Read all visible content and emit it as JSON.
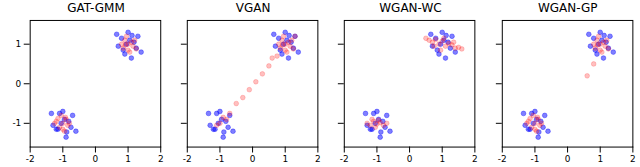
{
  "chart_data": [
    {
      "type": "scatter",
      "title": "GAT-GMM",
      "xlim": [
        -2,
        2
      ],
      "ylim": [
        -1.6,
        1.6
      ],
      "xticks": [
        -2,
        -1,
        0,
        1,
        2
      ],
      "yticks": [
        -1,
        0,
        1
      ],
      "series": [
        {
          "color": "#0000ff",
          "x": [
            1.05,
            0.8,
            1.25,
            0.9,
            1.3,
            0.7,
            1.1,
            1.0,
            0.85,
            1.18,
            0.95,
            1.4,
            0.65,
            1.12,
            -0.95,
            -1.2,
            -0.75,
            -1.1,
            -0.7,
            -1.3,
            -0.9,
            -1.0,
            -1.15,
            -0.82,
            -1.05,
            -0.6,
            -1.35,
            -0.88
          ],
          "values": [
            1.1,
            1.15,
            0.9,
            0.75,
            1.2,
            0.95,
            0.65,
            1.3,
            0.85,
            1.05,
            1.0,
            0.8,
            1.25,
            1.22,
            -0.9,
            -1.15,
            -1.1,
            -0.75,
            -0.8,
            -1.05,
            -1.35,
            -0.7,
            -1.15,
            -0.95,
            -1.0,
            -1.2,
            -0.75,
            -1.22
          ]
        },
        {
          "color": "#ff0000",
          "x": [
            1.0,
            0.9,
            1.15,
            0.85,
            1.2,
            1.05,
            0.95,
            1.1,
            0.8,
            1.25,
            1.0,
            0.92,
            -1.0,
            -0.9,
            -1.1,
            -1.2,
            -0.85,
            -1.05,
            -0.95,
            -1.15,
            -0.8,
            -1.0,
            -1.25,
            -0.92
          ],
          "values": [
            1.0,
            1.1,
            0.95,
            0.9,
            1.1,
            0.8,
            1.2,
            1.05,
            1.0,
            0.88,
            0.85,
            0.98,
            -1.0,
            -0.9,
            -1.1,
            -0.95,
            -1.05,
            -0.8,
            -1.2,
            -0.88,
            -1.0,
            -1.15,
            -1.0,
            -0.85
          ]
        }
      ]
    },
    {
      "type": "scatter",
      "title": "VGAN",
      "xlim": [
        -2,
        2
      ],
      "ylim": [
        -1.6,
        1.6
      ],
      "xticks": [
        -2,
        -1,
        0,
        1,
        2
      ],
      "yticks": [
        -1,
        0,
        1
      ],
      "tick_labels": "x",
      "series": [
        {
          "color": "#0000ff",
          "x": [
            1.05,
            0.8,
            1.25,
            0.9,
            1.3,
            0.7,
            1.1,
            1.0,
            0.85,
            1.18,
            0.95,
            1.4,
            0.65,
            1.12,
            -0.95,
            -1.2,
            -0.75,
            -1.1,
            -0.7,
            -1.3,
            -0.9,
            -1.0,
            -1.15,
            -0.82,
            -1.05,
            -0.6,
            -1.35,
            -0.88
          ],
          "values": [
            1.1,
            1.15,
            0.9,
            0.75,
            1.2,
            0.95,
            0.65,
            1.3,
            0.85,
            1.05,
            1.0,
            0.8,
            1.25,
            1.22,
            -0.9,
            -1.15,
            -1.1,
            -0.75,
            -0.8,
            -1.05,
            -1.35,
            -0.7,
            -1.15,
            -0.95,
            -1.0,
            -1.2,
            -0.75,
            -1.22
          ]
        },
        {
          "color": "#ff0000",
          "x": [
            1.0,
            0.9,
            1.15,
            0.85,
            1.2,
            1.05,
            0.95,
            1.1,
            0.8,
            1.25,
            1.0,
            0.92,
            1.3,
            0.75,
            0.5,
            0.3,
            0.1,
            -0.1,
            -0.3,
            -0.5,
            0.6,
            -0.7,
            -1.0,
            -0.9,
            -1.1,
            -0.8
          ],
          "values": [
            1.0,
            1.1,
            0.95,
            0.9,
            1.1,
            0.8,
            1.2,
            1.05,
            1.0,
            0.88,
            0.85,
            0.98,
            1.2,
            0.7,
            0.45,
            0.25,
            0.05,
            -0.15,
            -0.35,
            -0.5,
            0.65,
            -0.75,
            -1.0,
            -0.85,
            -1.05,
            -0.9
          ]
        }
      ]
    },
    {
      "type": "scatter",
      "title": "WGAN-WC",
      "xlim": [
        -2,
        2
      ],
      "ylim": [
        -1.6,
        1.6
      ],
      "xticks": [
        -2,
        -1,
        0,
        1,
        2
      ],
      "yticks": [
        -1,
        0,
        1
      ],
      "tick_labels": "x",
      "series": [
        {
          "color": "#0000ff",
          "x": [
            1.05,
            0.8,
            1.25,
            0.9,
            1.3,
            0.7,
            1.1,
            1.0,
            0.85,
            1.18,
            0.95,
            1.4,
            0.65,
            1.12,
            -0.95,
            -1.2,
            -0.75,
            -1.1,
            -0.7,
            -1.3,
            -0.9,
            -1.0,
            -1.15,
            -0.82,
            -1.05,
            -0.6,
            -1.35,
            -0.88
          ],
          "values": [
            1.1,
            1.15,
            0.9,
            0.75,
            1.2,
            0.95,
            0.65,
            1.3,
            0.85,
            1.05,
            1.0,
            0.8,
            1.25,
            1.22,
            -0.9,
            -1.15,
            -1.1,
            -0.75,
            -0.8,
            -1.05,
            -1.35,
            -0.7,
            -1.15,
            -0.95,
            -1.0,
            -1.2,
            -0.75,
            -1.22
          ]
        },
        {
          "color": "#ff0000",
          "x": [
            0.5,
            0.6,
            0.7,
            0.8,
            0.9,
            1.0,
            1.1,
            1.2,
            1.3,
            1.4,
            1.5,
            1.6,
            0.75,
            1.05,
            1.35,
            0.95,
            -1.3,
            -1.2,
            -1.1,
            -1.0,
            -0.9,
            -0.8,
            -0.7,
            -1.05,
            -0.95,
            -1.15
          ],
          "values": [
            1.15,
            1.1,
            1.05,
            1.12,
            1.0,
            1.08,
            0.95,
            1.02,
            0.98,
            0.9,
            0.92,
            0.88,
            0.95,
            1.15,
            1.05,
            0.85,
            -1.0,
            -1.05,
            -0.95,
            -1.02,
            -0.98,
            -1.05,
            -1.0,
            -1.1,
            -0.92,
            -0.9
          ]
        }
      ]
    },
    {
      "type": "scatter",
      "title": "WGAN-GP",
      "xlim": [
        -2,
        2
      ],
      "ylim": [
        -1.6,
        1.6
      ],
      "xticks": [
        -2,
        -1,
        0,
        1,
        2
      ],
      "yticks": [
        -1,
        0,
        1
      ],
      "tick_labels": "x",
      "series": [
        {
          "color": "#0000ff",
          "x": [
            1.05,
            0.8,
            1.25,
            0.9,
            1.3,
            0.7,
            1.1,
            1.0,
            0.85,
            1.18,
            0.95,
            1.4,
            0.65,
            1.12,
            -0.95,
            -1.2,
            -0.75,
            -1.1,
            -0.7,
            -1.3,
            -0.9,
            -1.0,
            -1.15,
            -0.82,
            -1.05,
            -0.6,
            -1.35,
            -0.88
          ],
          "values": [
            1.1,
            1.15,
            0.9,
            0.75,
            1.2,
            0.95,
            0.65,
            1.3,
            0.85,
            1.05,
            1.0,
            0.8,
            1.25,
            1.22,
            -0.9,
            -1.15,
            -1.1,
            -0.75,
            -0.8,
            -1.05,
            -1.35,
            -0.7,
            -1.15,
            -0.95,
            -1.0,
            -1.2,
            -0.75,
            -1.22
          ]
        },
        {
          "color": "#ff0000",
          "x": [
            1.0,
            0.9,
            1.15,
            0.85,
            1.2,
            1.05,
            0.95,
            1.1,
            0.8,
            1.25,
            1.0,
            0.92,
            0.6,
            0.8,
            -1.0,
            -0.9,
            -1.1,
            -1.2,
            -0.85,
            -1.05,
            -0.95,
            -1.15,
            -0.8,
            -1.0,
            -1.25,
            -0.92
          ],
          "values": [
            1.0,
            1.1,
            0.95,
            0.9,
            1.1,
            0.8,
            1.2,
            1.05,
            1.0,
            0.88,
            0.85,
            0.98,
            0.2,
            0.5,
            -1.0,
            -0.9,
            -1.1,
            -0.95,
            -1.05,
            -0.8,
            -1.2,
            -0.88,
            -1.0,
            -1.15,
            -1.0,
            -0.85
          ]
        }
      ]
    }
  ]
}
